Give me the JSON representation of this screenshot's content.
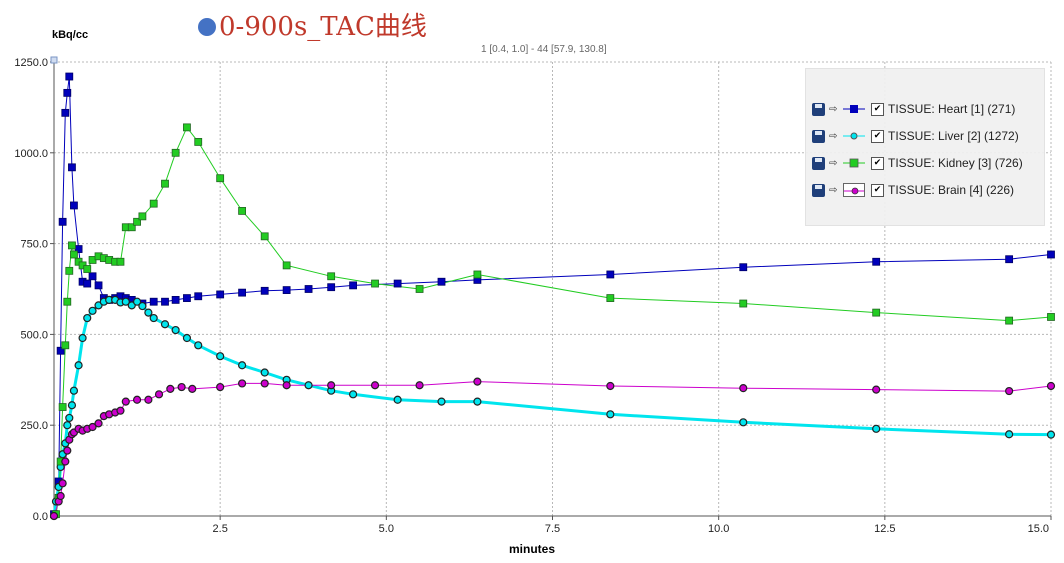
{
  "title": "0-900s_TAC曲线",
  "info_label": "1 [0.4, 1.0] - 44 [57.9, 130.8]",
  "chart_data": {
    "type": "line",
    "xlabel": "minutes",
    "ylabel": "kBq/cc",
    "xlim": [
      0,
      15
    ],
    "ylim": [
      0,
      1250
    ],
    "xticks": [
      "2.5",
      "5.0",
      "7.5",
      "10.0",
      "12.5",
      "15.0"
    ],
    "yticks": [
      "0.0",
      "250.0",
      "500.0",
      "750.0",
      "1000.0",
      "1250.0"
    ],
    "grid": true,
    "legend_position": "top-right",
    "series": [
      {
        "name": "TISSUE: Heart [1] (271)",
        "color": "#0000bb",
        "marker": "square",
        "x": [
          0,
          0.07,
          0.1,
          0.13,
          0.17,
          0.2,
          0.23,
          0.27,
          0.3,
          0.37,
          0.43,
          0.5,
          0.58,
          0.67,
          0.75,
          0.83,
          0.92,
          1.0,
          1.08,
          1.17,
          1.33,
          1.5,
          1.67,
          1.83,
          2.0,
          2.17,
          2.5,
          2.83,
          3.17,
          3.5,
          3.83,
          4.17,
          4.5,
          5.17,
          5.83,
          6.37,
          8.37,
          10.37,
          12.37,
          14.37,
          15.0
        ],
        "values": [
          5,
          95,
          455,
          810,
          1110,
          1165,
          1210,
          960,
          855,
          735,
          645,
          640,
          660,
          635,
          600,
          595,
          600,
          605,
          600,
          595,
          585,
          590,
          590,
          595,
          600,
          605,
          610,
          615,
          620,
          622,
          625,
          630,
          635,
          640,
          645,
          650,
          665,
          685,
          700,
          707,
          720
        ]
      },
      {
        "name": "TISSUE: Liver [2] (1272)",
        "color": "#00e5ee",
        "marker": "circle",
        "x": [
          0,
          0.03,
          0.07,
          0.1,
          0.13,
          0.17,
          0.2,
          0.23,
          0.27,
          0.3,
          0.37,
          0.43,
          0.5,
          0.58,
          0.67,
          0.75,
          0.83,
          0.92,
          1.0,
          1.08,
          1.17,
          1.25,
          1.33,
          1.42,
          1.5,
          1.67,
          1.83,
          2.0,
          2.17,
          2.5,
          2.83,
          3.17,
          3.5,
          3.83,
          4.17,
          4.5,
          5.17,
          5.83,
          6.37,
          8.37,
          10.37,
          12.37,
          14.37,
          15.0
        ],
        "values": [
          0,
          40,
          80,
          135,
          170,
          200,
          250,
          270,
          305,
          345,
          415,
          490,
          545,
          565,
          580,
          590,
          595,
          595,
          588,
          590,
          580,
          590,
          578,
          560,
          545,
          528,
          512,
          490,
          470,
          440,
          415,
          395,
          375,
          360,
          345,
          335,
          320,
          315,
          315,
          280,
          258,
          240,
          225,
          224
        ]
      },
      {
        "name": "TISSUE: Kidney [3] (726)",
        "color": "#22cc22",
        "marker": "square",
        "x": [
          0.03,
          0.07,
          0.1,
          0.13,
          0.17,
          0.2,
          0.23,
          0.27,
          0.3,
          0.37,
          0.43,
          0.5,
          0.58,
          0.67,
          0.75,
          0.83,
          0.92,
          1.0,
          1.08,
          1.17,
          1.25,
          1.33,
          1.5,
          1.67,
          1.83,
          2.0,
          2.17,
          2.5,
          2.83,
          3.17,
          3.5,
          4.17,
          4.83,
          5.5,
          6.37,
          8.37,
          10.37,
          12.37,
          14.37,
          15.0
        ],
        "values": [
          5,
          50,
          150,
          300,
          470,
          590,
          675,
          745,
          720,
          700,
          690,
          680,
          705,
          715,
          710,
          705,
          700,
          700,
          795,
          795,
          810,
          825,
          860,
          915,
          1000,
          1070,
          1030,
          930,
          840,
          770,
          690,
          660,
          640,
          625,
          665,
          600,
          585,
          560,
          538,
          548
        ]
      },
      {
        "name": "TISSUE: Brain [4] (226)",
        "color": "#cc00cc",
        "marker": "circle",
        "x": [
          0,
          0.07,
          0.1,
          0.13,
          0.17,
          0.2,
          0.23,
          0.27,
          0.3,
          0.37,
          0.43,
          0.5,
          0.58,
          0.67,
          0.75,
          0.83,
          0.92,
          1.0,
          1.08,
          1.25,
          1.42,
          1.58,
          1.75,
          1.92,
          2.08,
          2.5,
          2.83,
          3.17,
          3.5,
          4.17,
          4.83,
          5.5,
          6.37,
          8.37,
          10.37,
          12.37,
          14.37,
          15.0
        ],
        "values": [
          0,
          40,
          55,
          90,
          150,
          180,
          210,
          225,
          230,
          240,
          235,
          240,
          245,
          255,
          275,
          280,
          285,
          290,
          315,
          320,
          320,
          335,
          350,
          355,
          350,
          355,
          365,
          365,
          360,
          360,
          360,
          360,
          370,
          358,
          352,
          348,
          344,
          358
        ]
      }
    ]
  },
  "legend": {
    "items": [
      {
        "label": "TISSUE: Heart [1] (271)",
        "color": "#0000bb",
        "marker": "square",
        "checked": "✔"
      },
      {
        "label": "TISSUE: Liver [2] (1272)",
        "color": "#00e5ee",
        "marker": "circle",
        "checked": "✔"
      },
      {
        "label": "TISSUE: Kidney [3] (726)",
        "color": "#22cc22",
        "marker": "square",
        "checked": "✔"
      },
      {
        "label": "TISSUE: Brain [4] (226)",
        "color": "#cc00cc",
        "marker": "circle",
        "checked": "✔"
      }
    ]
  }
}
